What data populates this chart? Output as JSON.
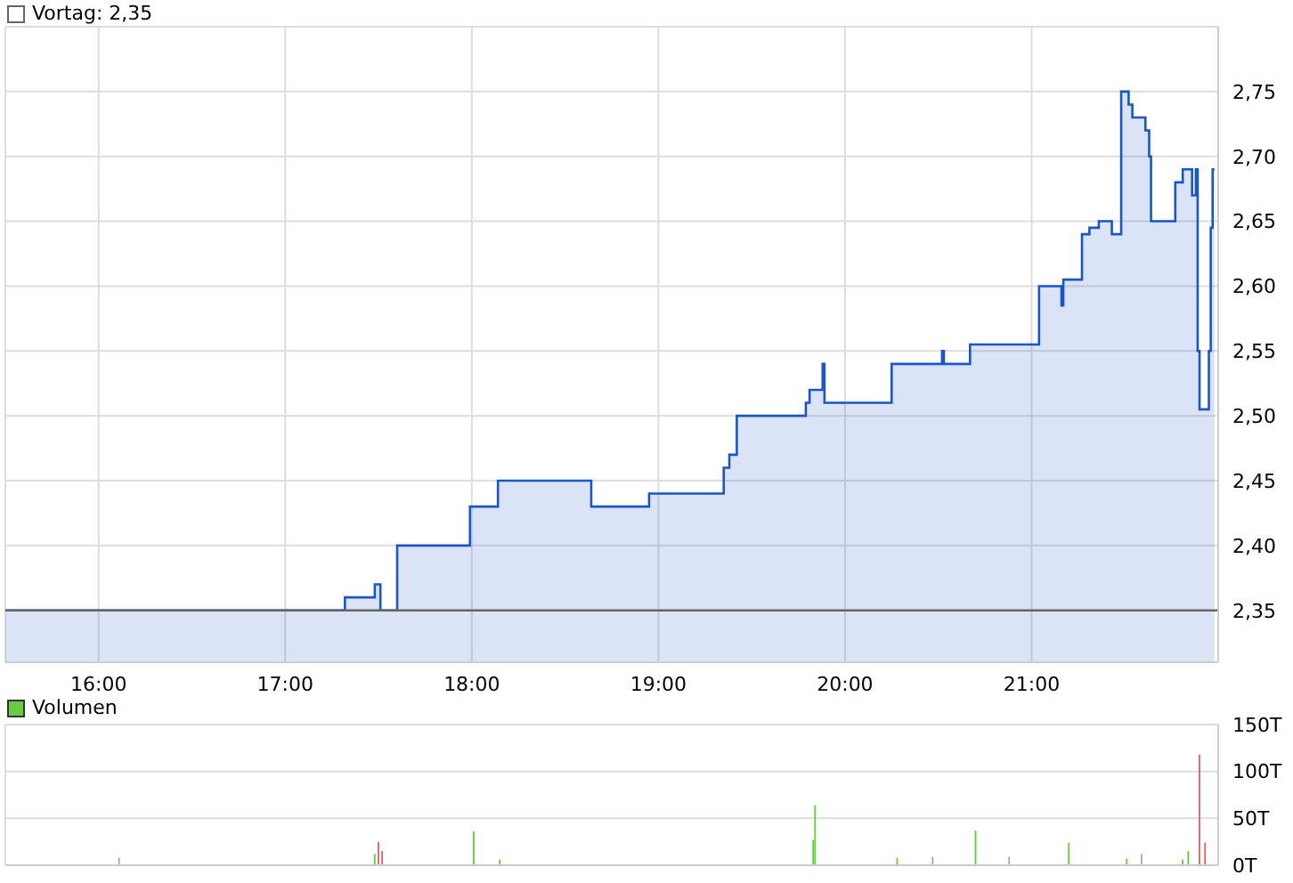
{
  "chart_data": [
    {
      "type": "area",
      "legend": "top left",
      "grid": true,
      "xlim": [
        15.5,
        22
      ],
      "xticks": [
        {
          "value": 16,
          "label": "16:00"
        },
        {
          "value": 17,
          "label": "17:00"
        },
        {
          "value": 18,
          "label": "18:00"
        },
        {
          "value": 19,
          "label": "19:00"
        },
        {
          "value": 20,
          "label": "20:00"
        },
        {
          "value": 21,
          "label": "21:00"
        }
      ],
      "ylim": [
        2.31,
        2.8
      ],
      "yticks": [
        {
          "value": 2.35,
          "label": "2,35"
        },
        {
          "value": 2.4,
          "label": "2,40"
        },
        {
          "value": 2.45,
          "label": "2,45"
        },
        {
          "value": 2.5,
          "label": "2,50"
        },
        {
          "value": 2.55,
          "label": "2,55"
        },
        {
          "value": 2.6,
          "label": "2,60"
        },
        {
          "value": 2.65,
          "label": "2,65"
        },
        {
          "value": 2.7,
          "label": "2,70"
        },
        {
          "value": 2.75,
          "label": "2,75"
        }
      ],
      "ref_lines": [
        {
          "axis": "y",
          "value": 2.35,
          "label": "Vortag: 2,35",
          "color": "#666666"
        }
      ],
      "series": [
        {
          "color": "#1a56c4",
          "x": [
            15.5,
            17.32,
            17.32,
            17.48,
            17.48,
            17.51,
            17.51,
            17.6,
            17.6,
            17.99,
            17.99,
            18.14,
            18.14,
            18.64,
            18.64,
            18.95,
            18.95,
            19.35,
            19.35,
            19.38,
            19.38,
            19.42,
            19.42,
            19.79,
            19.79,
            19.81,
            19.81,
            19.88,
            19.88,
            19.89,
            19.89,
            20.25,
            20.25,
            20.52,
            20.52,
            20.53,
            20.53,
            20.67,
            20.67,
            21.04,
            21.04,
            21.16,
            21.16,
            21.17,
            21.17,
            21.27,
            21.27,
            21.31,
            21.31,
            21.36,
            21.36,
            21.43,
            21.43,
            21.48,
            21.48,
            21.52,
            21.52,
            21.54,
            21.54,
            21.61,
            21.61,
            21.63,
            21.63,
            21.64,
            21.64,
            21.77,
            21.77,
            21.81,
            21.81,
            21.86,
            21.86,
            21.88,
            21.88,
            21.89,
            21.89,
            21.9,
            21.9,
            21.95,
            21.95,
            21.96,
            21.96,
            21.97,
            21.97,
            21.98
          ],
          "values": [
            2.35,
            2.35,
            2.36,
            2.36,
            2.37,
            2.37,
            2.35,
            2.35,
            2.4,
            2.4,
            2.43,
            2.43,
            2.45,
            2.45,
            2.43,
            2.43,
            2.44,
            2.44,
            2.46,
            2.46,
            2.47,
            2.47,
            2.5,
            2.5,
            2.51,
            2.51,
            2.52,
            2.52,
            2.54,
            2.54,
            2.51,
            2.51,
            2.54,
            2.54,
            2.55,
            2.55,
            2.54,
            2.54,
            2.555,
            2.555,
            2.6,
            2.6,
            2.585,
            2.585,
            2.605,
            2.605,
            2.64,
            2.64,
            2.645,
            2.645,
            2.65,
            2.65,
            2.64,
            2.64,
            2.75,
            2.75,
            2.74,
            2.74,
            2.73,
            2.73,
            2.72,
            2.72,
            2.7,
            2.7,
            2.65,
            2.65,
            2.68,
            2.68,
            2.69,
            2.69,
            2.67,
            2.67,
            2.69,
            2.69,
            2.55,
            2.55,
            2.505,
            2.505,
            2.55,
            2.55,
            2.645,
            2.645,
            2.69,
            2.69
          ]
        }
      ]
    },
    {
      "type": "bar",
      "legend": "top left",
      "grid": true,
      "tick_labels": "y",
      "xlim": [
        15.5,
        22
      ],
      "xticks": [
        {
          "value": 16,
          "label": null
        },
        {
          "value": 17,
          "label": null
        },
        {
          "value": 18,
          "label": null
        },
        {
          "value": 19,
          "label": null
        },
        {
          "value": 20,
          "label": null
        },
        {
          "value": 21,
          "label": null
        }
      ],
      "ylim": [
        0,
        150
      ],
      "yticks": [
        {
          "value": 0,
          "label": "0T"
        },
        {
          "value": 50,
          "label": "50T"
        },
        {
          "value": 100,
          "label": "100T"
        },
        {
          "value": 150,
          "label": "150T"
        }
      ],
      "series": [
        {
          "name": "Volumen",
          "color": "#66cc44",
          "x": [
            16.11,
            17.48,
            17.5,
            17.52,
            18.01,
            18.15,
            19.83,
            19.84,
            20.28,
            20.47,
            20.7,
            20.88,
            21.2,
            21.51,
            21.59,
            21.81,
            21.84,
            21.9,
            21.93
          ],
          "values": [
            8,
            12,
            25,
            15,
            36,
            6,
            27,
            64,
            8,
            9,
            37,
            9,
            24,
            7,
            12,
            6,
            15,
            118,
            24
          ],
          "colors": [
            "#aaaaaa",
            "#66cc44",
            "#e06666",
            "#e06666",
            "#66cc44",
            "#66cc44",
            "#66cc44",
            "#66cc44",
            "#66cc44",
            "#aaaaaa",
            "#66cc44",
            "#aaaaaa",
            "#66cc44",
            "#66cc44",
            "#aaaaaa",
            "#66cc44",
            "#66cc44",
            "#e06666",
            "#e06666"
          ]
        }
      ]
    }
  ]
}
